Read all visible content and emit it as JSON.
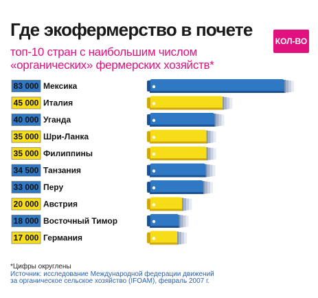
{
  "header": {
    "title": "Где экофермерство в почете",
    "badge": "КОЛ-ВО",
    "subtitle_line1": "топ-10 стран с наибольшим числом",
    "subtitle_line2": "«органических» фермерских хозяйств*"
  },
  "footer": {
    "note": "*Цифры округлены",
    "source_line1": "Источник: исследование Международной федерации движений",
    "source_line2": "за органическое сельское хозяйство (IFOAM), февраль 2007 г."
  },
  "colors": {
    "blue": "#2f78c4",
    "yellow": "#f7dd18",
    "accent": "#e0117f"
  },
  "chart_data": {
    "type": "bar",
    "orientation": "horizontal",
    "categories": [
      "Мексика",
      "Италия",
      "Уганда",
      "Шри-Ланка",
      "Филиппины",
      "Танзания",
      "Перу",
      "Австрия",
      "Восточный Тимор",
      "Германия"
    ],
    "value_labels": [
      "83 000",
      "45 000",
      "40 000",
      "35 000",
      "35 000",
      "34 500",
      "33 000",
      "20 000",
      "18 000",
      "17 000"
    ],
    "values": [
      83000,
      45000,
      40000,
      35000,
      35000,
      34500,
      33000,
      20000,
      18000,
      17000
    ],
    "bar_colors": [
      "blue",
      "yellow",
      "blue",
      "yellow",
      "yellow",
      "blue",
      "blue",
      "yellow",
      "blue",
      "yellow"
    ]
  }
}
